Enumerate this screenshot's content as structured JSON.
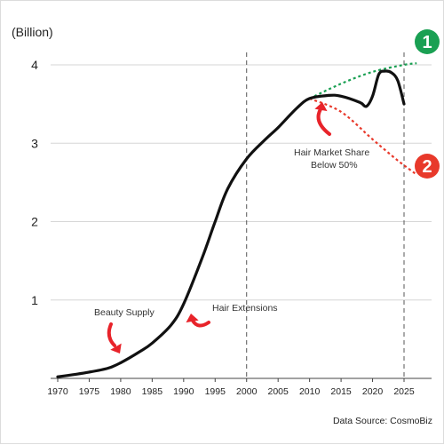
{
  "chart_data": {
    "type": "line",
    "ylabel": "(Billion)",
    "yticks": [
      1,
      2,
      3,
      4
    ],
    "ylim": [
      0,
      4.2
    ],
    "xticks": [
      1970,
      1975,
      1980,
      1985,
      1990,
      1995,
      2000,
      2005,
      2010,
      2015,
      2020,
      2025
    ],
    "xlim": [
      1968,
      2027
    ],
    "grid": "horizontal",
    "vlines": [
      2000,
      2025
    ],
    "series": [
      {
        "values": [
          [
            1970,
            0.02
          ],
          [
            1975,
            0.08
          ],
          [
            1978,
            0.13
          ],
          [
            1980,
            0.2
          ],
          [
            1983,
            0.34
          ],
          [
            1985,
            0.45
          ],
          [
            1988,
            0.68
          ],
          [
            1990,
            0.95
          ],
          [
            1993,
            1.55
          ],
          [
            1995,
            2.0
          ],
          [
            1997,
            2.42
          ],
          [
            2000,
            2.8
          ],
          [
            2003,
            3.05
          ],
          [
            2005,
            3.2
          ],
          [
            2008,
            3.45
          ],
          [
            2010,
            3.57
          ],
          [
            2013,
            3.61
          ],
          [
            2015,
            3.6
          ],
          [
            2018,
            3.52
          ],
          [
            2019,
            3.47
          ],
          [
            2020,
            3.6
          ],
          [
            2021,
            3.88
          ],
          [
            2022,
            3.92
          ],
          [
            2023,
            3.9
          ],
          [
            2024,
            3.8
          ],
          [
            2025,
            3.5
          ]
        ]
      }
    ],
    "projections": [
      {
        "label": "1",
        "color": "#1aa053",
        "values": [
          [
            2010,
            3.57
          ],
          [
            2015,
            3.76
          ],
          [
            2020,
            3.91
          ],
          [
            2025,
            4.0
          ],
          [
            2027,
            4.02
          ]
        ]
      },
      {
        "label": "2",
        "color": "#e8392b",
        "values": [
          [
            2010,
            3.57
          ],
          [
            2015,
            3.4
          ],
          [
            2020,
            3.05
          ],
          [
            2024,
            2.78
          ],
          [
            2027,
            2.6
          ]
        ]
      }
    ],
    "annotations": [
      {
        "text": "Beauty Supply"
      },
      {
        "text": "Hair Extensions"
      },
      {
        "lines": [
          "Hair Market Share",
          "Below 50%"
        ]
      }
    ],
    "source": "Data Source: CosmoBiz"
  },
  "colors": {
    "line": "#111111",
    "grid": "#d6d6d6",
    "arrow": "#e8232a",
    "green": "#1aa053",
    "red": "#e8392b"
  }
}
